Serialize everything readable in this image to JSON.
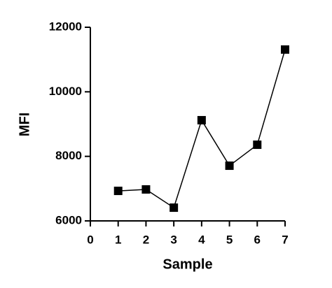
{
  "chart_data": {
    "type": "line",
    "xlabel": "Sample",
    "ylabel": "MFI",
    "x": [
      1,
      2,
      3,
      4,
      5,
      6,
      7
    ],
    "values": [
      6930,
      6975,
      6410,
      9120,
      7710,
      8360,
      11310
    ],
    "color": "#000000",
    "marker": "square",
    "xlim": [
      0,
      7
    ],
    "xticks": [
      0,
      1,
      2,
      3,
      4,
      5,
      6,
      7
    ],
    "ylim": [
      6000,
      12000
    ],
    "yticks": [
      6000,
      8000,
      10000,
      12000
    ]
  }
}
